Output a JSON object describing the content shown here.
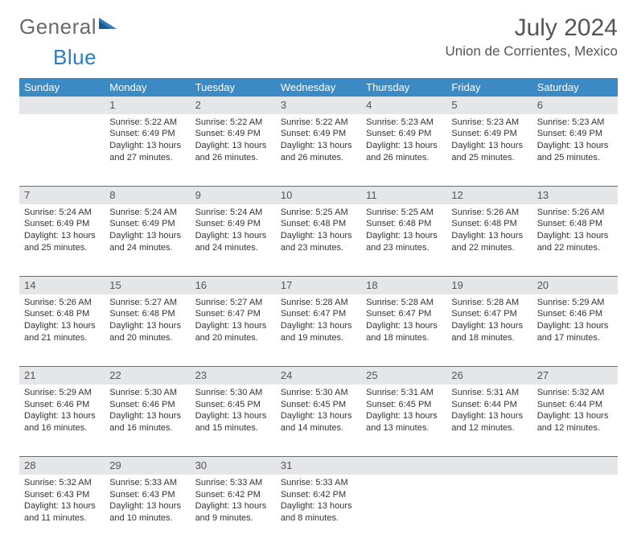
{
  "logo": {
    "word1": "General",
    "word2": "Blue"
  },
  "title": "July 2024",
  "location": "Union de Corrientes, Mexico",
  "colors": {
    "header_bg": "#3b8ac4",
    "header_text": "#ffffff",
    "daynum_bg": "#e4e6e8",
    "rule": "#2b7cc0",
    "title_color": "#555555"
  },
  "weekdays": [
    "Sunday",
    "Monday",
    "Tuesday",
    "Wednesday",
    "Thursday",
    "Friday",
    "Saturday"
  ],
  "weeks": [
    [
      null,
      {
        "n": "1",
        "sr": "Sunrise: 5:22 AM",
        "ss": "Sunset: 6:49 PM",
        "dl": "Daylight: 13 hours and 27 minutes."
      },
      {
        "n": "2",
        "sr": "Sunrise: 5:22 AM",
        "ss": "Sunset: 6:49 PM",
        "dl": "Daylight: 13 hours and 26 minutes."
      },
      {
        "n": "3",
        "sr": "Sunrise: 5:22 AM",
        "ss": "Sunset: 6:49 PM",
        "dl": "Daylight: 13 hours and 26 minutes."
      },
      {
        "n": "4",
        "sr": "Sunrise: 5:23 AM",
        "ss": "Sunset: 6:49 PM",
        "dl": "Daylight: 13 hours and 26 minutes."
      },
      {
        "n": "5",
        "sr": "Sunrise: 5:23 AM",
        "ss": "Sunset: 6:49 PM",
        "dl": "Daylight: 13 hours and 25 minutes."
      },
      {
        "n": "6",
        "sr": "Sunrise: 5:23 AM",
        "ss": "Sunset: 6:49 PM",
        "dl": "Daylight: 13 hours and 25 minutes."
      }
    ],
    [
      {
        "n": "7",
        "sr": "Sunrise: 5:24 AM",
        "ss": "Sunset: 6:49 PM",
        "dl": "Daylight: 13 hours and 25 minutes."
      },
      {
        "n": "8",
        "sr": "Sunrise: 5:24 AM",
        "ss": "Sunset: 6:49 PM",
        "dl": "Daylight: 13 hours and 24 minutes."
      },
      {
        "n": "9",
        "sr": "Sunrise: 5:24 AM",
        "ss": "Sunset: 6:49 PM",
        "dl": "Daylight: 13 hours and 24 minutes."
      },
      {
        "n": "10",
        "sr": "Sunrise: 5:25 AM",
        "ss": "Sunset: 6:48 PM",
        "dl": "Daylight: 13 hours and 23 minutes."
      },
      {
        "n": "11",
        "sr": "Sunrise: 5:25 AM",
        "ss": "Sunset: 6:48 PM",
        "dl": "Daylight: 13 hours and 23 minutes."
      },
      {
        "n": "12",
        "sr": "Sunrise: 5:26 AM",
        "ss": "Sunset: 6:48 PM",
        "dl": "Daylight: 13 hours and 22 minutes."
      },
      {
        "n": "13",
        "sr": "Sunrise: 5:26 AM",
        "ss": "Sunset: 6:48 PM",
        "dl": "Daylight: 13 hours and 22 minutes."
      }
    ],
    [
      {
        "n": "14",
        "sr": "Sunrise: 5:26 AM",
        "ss": "Sunset: 6:48 PM",
        "dl": "Daylight: 13 hours and 21 minutes."
      },
      {
        "n": "15",
        "sr": "Sunrise: 5:27 AM",
        "ss": "Sunset: 6:48 PM",
        "dl": "Daylight: 13 hours and 20 minutes."
      },
      {
        "n": "16",
        "sr": "Sunrise: 5:27 AM",
        "ss": "Sunset: 6:47 PM",
        "dl": "Daylight: 13 hours and 20 minutes."
      },
      {
        "n": "17",
        "sr": "Sunrise: 5:28 AM",
        "ss": "Sunset: 6:47 PM",
        "dl": "Daylight: 13 hours and 19 minutes."
      },
      {
        "n": "18",
        "sr": "Sunrise: 5:28 AM",
        "ss": "Sunset: 6:47 PM",
        "dl": "Daylight: 13 hours and 18 minutes."
      },
      {
        "n": "19",
        "sr": "Sunrise: 5:28 AM",
        "ss": "Sunset: 6:47 PM",
        "dl": "Daylight: 13 hours and 18 minutes."
      },
      {
        "n": "20",
        "sr": "Sunrise: 5:29 AM",
        "ss": "Sunset: 6:46 PM",
        "dl": "Daylight: 13 hours and 17 minutes."
      }
    ],
    [
      {
        "n": "21",
        "sr": "Sunrise: 5:29 AM",
        "ss": "Sunset: 6:46 PM",
        "dl": "Daylight: 13 hours and 16 minutes."
      },
      {
        "n": "22",
        "sr": "Sunrise: 5:30 AM",
        "ss": "Sunset: 6:46 PM",
        "dl": "Daylight: 13 hours and 16 minutes."
      },
      {
        "n": "23",
        "sr": "Sunrise: 5:30 AM",
        "ss": "Sunset: 6:45 PM",
        "dl": "Daylight: 13 hours and 15 minutes."
      },
      {
        "n": "24",
        "sr": "Sunrise: 5:30 AM",
        "ss": "Sunset: 6:45 PM",
        "dl": "Daylight: 13 hours and 14 minutes."
      },
      {
        "n": "25",
        "sr": "Sunrise: 5:31 AM",
        "ss": "Sunset: 6:45 PM",
        "dl": "Daylight: 13 hours and 13 minutes."
      },
      {
        "n": "26",
        "sr": "Sunrise: 5:31 AM",
        "ss": "Sunset: 6:44 PM",
        "dl": "Daylight: 13 hours and 12 minutes."
      },
      {
        "n": "27",
        "sr": "Sunrise: 5:32 AM",
        "ss": "Sunset: 6:44 PM",
        "dl": "Daylight: 13 hours and 12 minutes."
      }
    ],
    [
      {
        "n": "28",
        "sr": "Sunrise: 5:32 AM",
        "ss": "Sunset: 6:43 PM",
        "dl": "Daylight: 13 hours and 11 minutes."
      },
      {
        "n": "29",
        "sr": "Sunrise: 5:33 AM",
        "ss": "Sunset: 6:43 PM",
        "dl": "Daylight: 13 hours and 10 minutes."
      },
      {
        "n": "30",
        "sr": "Sunrise: 5:33 AM",
        "ss": "Sunset: 6:42 PM",
        "dl": "Daylight: 13 hours and 9 minutes."
      },
      {
        "n": "31",
        "sr": "Sunrise: 5:33 AM",
        "ss": "Sunset: 6:42 PM",
        "dl": "Daylight: 13 hours and 8 minutes."
      },
      null,
      null,
      null
    ]
  ]
}
